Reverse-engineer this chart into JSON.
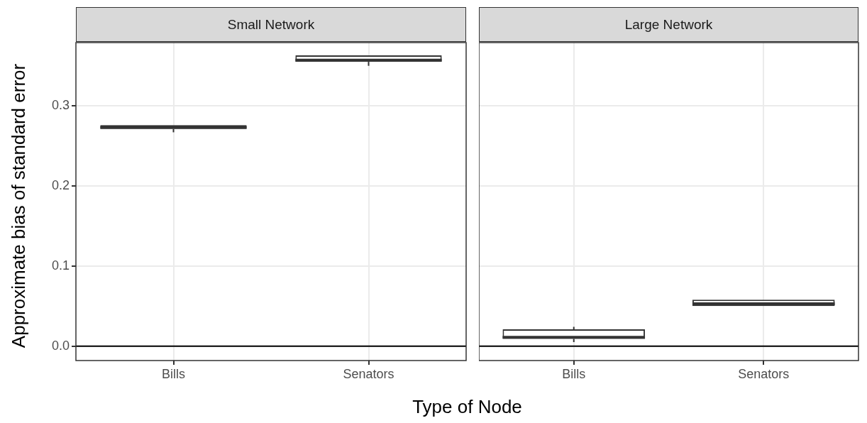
{
  "chart_data": [
    {
      "type": "box",
      "title": "Small Network",
      "xlabel": "Type of Node",
      "ylabel": "Approximate bias of standard error",
      "categories": [
        "Bills",
        "Senators"
      ],
      "boxes": [
        {
          "low": 0.267,
          "q1": 0.271,
          "median": 0.273,
          "q3": 0.276,
          "high": 0.276
        },
        {
          "low": 0.35,
          "q1": 0.355,
          "median": 0.357,
          "q3": 0.363,
          "high": 0.363
        }
      ],
      "ylim": [
        -0.018,
        0.379
      ],
      "yticks": [
        {
          "value": 0,
          "label": "0.0"
        },
        0.1,
        0.2,
        0.3
      ],
      "grid": true,
      "ref_lines": [
        {
          "axis": "y",
          "value": 0,
          "color": "#000000"
        }
      ]
    },
    {
      "type": "box",
      "title": "Large Network",
      "categories": [
        "Bills",
        "Senators"
      ],
      "boxes": [
        {
          "low": 0.005,
          "q1": 0.009,
          "median": 0.011,
          "q3": 0.021,
          "high": 0.024
        },
        {
          "low": 0.05,
          "q1": 0.05,
          "median": 0.053,
          "q3": 0.058,
          "high": 0.058
        }
      ],
      "ylim": [
        -0.018,
        0.379
      ],
      "yticks": [
        0,
        0.1,
        0.2,
        0.3
      ],
      "grid": true,
      "tick_labels": "x",
      "ref_lines": [
        {
          "axis": "y",
          "value": 0,
          "color": "#000000"
        }
      ]
    }
  ]
}
